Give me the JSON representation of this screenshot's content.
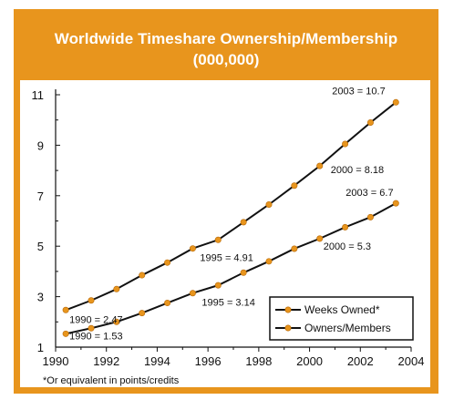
{
  "chart_data": {
    "type": "line",
    "title": "Worldwide Timeshare Ownership/Membership",
    "subtitle": "(000,000)",
    "xlim": [
      1990,
      2004
    ],
    "ylim": [
      1,
      11
    ],
    "x_ticks": [
      "1990",
      "1992",
      "1994",
      "1996",
      "1998",
      "2000",
      "2002",
      "2004"
    ],
    "y_ticks": [
      "1",
      "3",
      "5",
      "7",
      "9",
      "11"
    ],
    "series": [
      {
        "name": "Weeks Owned*",
        "x": [
          1990,
          1991,
          1992,
          1993,
          1994,
          1995,
          1996,
          1997,
          1998,
          1999,
          2000,
          2001,
          2002,
          2003
        ],
        "values": [
          2.47,
          2.85,
          3.3,
          3.85,
          4.35,
          4.91,
          5.25,
          5.95,
          6.65,
          7.4,
          8.18,
          9.05,
          9.9,
          10.7
        ]
      },
      {
        "name": "Owners/Members",
        "x": [
          1990,
          1991,
          1992,
          1993,
          1994,
          1995,
          1996,
          1997,
          1998,
          1999,
          2000,
          2001,
          2002,
          2003
        ],
        "values": [
          1.53,
          1.75,
          2.0,
          2.35,
          2.75,
          3.14,
          3.45,
          3.95,
          4.4,
          4.9,
          5.3,
          5.75,
          6.15,
          6.7
        ]
      }
    ],
    "annotations": [
      {
        "text": "1990 = 2.47",
        "series": 0,
        "x": 1990
      },
      {
        "text": "1995 = 4.91",
        "series": 0,
        "x": 1995
      },
      {
        "text": "2000 = 8.18",
        "series": 0,
        "x": 2000
      },
      {
        "text": "2003 = 10.7",
        "series": 0,
        "x": 2003
      },
      {
        "text": "1990 = 1.53",
        "series": 1,
        "x": 1990
      },
      {
        "text": "1995 = 3.14",
        "series": 1,
        "x": 1995
      },
      {
        "text": "2000 = 5.3",
        "series": 1,
        "x": 2000
      },
      {
        "text": "2003 = 6.7",
        "series": 1,
        "x": 2003
      }
    ],
    "legend": "bottom-right",
    "grid": false,
    "colors": {
      "frame": "#e8951d",
      "marker": "#e8951d",
      "line": "#111111"
    },
    "footnote": "*Or equivalent in points/credits"
  }
}
